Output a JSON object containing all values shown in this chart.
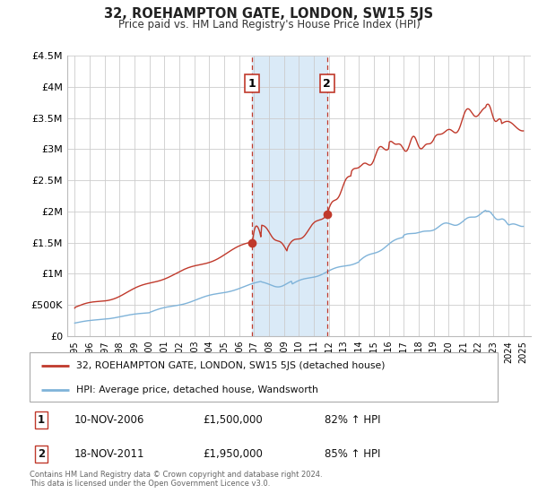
{
  "title": "32, ROEHAMPTON GATE, LONDON, SW15 5JS",
  "subtitle": "Price paid vs. HM Land Registry's House Price Index (HPI)",
  "red_label": "32, ROEHAMPTON GATE, LONDON, SW15 5JS (detached house)",
  "blue_label": "HPI: Average price, detached house, Wandsworth",
  "marker1_date": 2006.87,
  "marker1_value": 1500000,
  "marker2_date": 2011.88,
  "marker2_value": 1950000,
  "marker1_label": "10-NOV-2006",
  "marker1_price": "£1,500,000",
  "marker1_hpi": "82% ↑ HPI",
  "marker2_label": "18-NOV-2011",
  "marker2_price": "£1,950,000",
  "marker2_hpi": "85% ↑ HPI",
  "ylim": [
    0,
    4500000
  ],
  "yticks": [
    0,
    500000,
    1000000,
    1500000,
    2000000,
    2500000,
    3000000,
    3500000,
    4000000,
    4500000
  ],
  "ytick_labels": [
    "£0",
    "£500K",
    "£1M",
    "£1.5M",
    "£2M",
    "£2.5M",
    "£3M",
    "£3.5M",
    "£4M",
    "£4.5M"
  ],
  "xlim_start": 1994.5,
  "xlim_end": 2025.5,
  "xticks": [
    1995,
    1996,
    1997,
    1998,
    1999,
    2000,
    2001,
    2002,
    2003,
    2004,
    2005,
    2006,
    2007,
    2008,
    2009,
    2010,
    2011,
    2012,
    2013,
    2014,
    2015,
    2016,
    2017,
    2018,
    2019,
    2020,
    2021,
    2022,
    2023,
    2024,
    2025
  ],
  "red_color": "#c0392b",
  "blue_color": "#7fb3d9",
  "background_color": "#ffffff",
  "grid_color": "#cccccc",
  "shade_color": "#daeaf7",
  "footer_text": "Contains HM Land Registry data © Crown copyright and database right 2024.\nThis data is licensed under the Open Government Licence v3.0."
}
